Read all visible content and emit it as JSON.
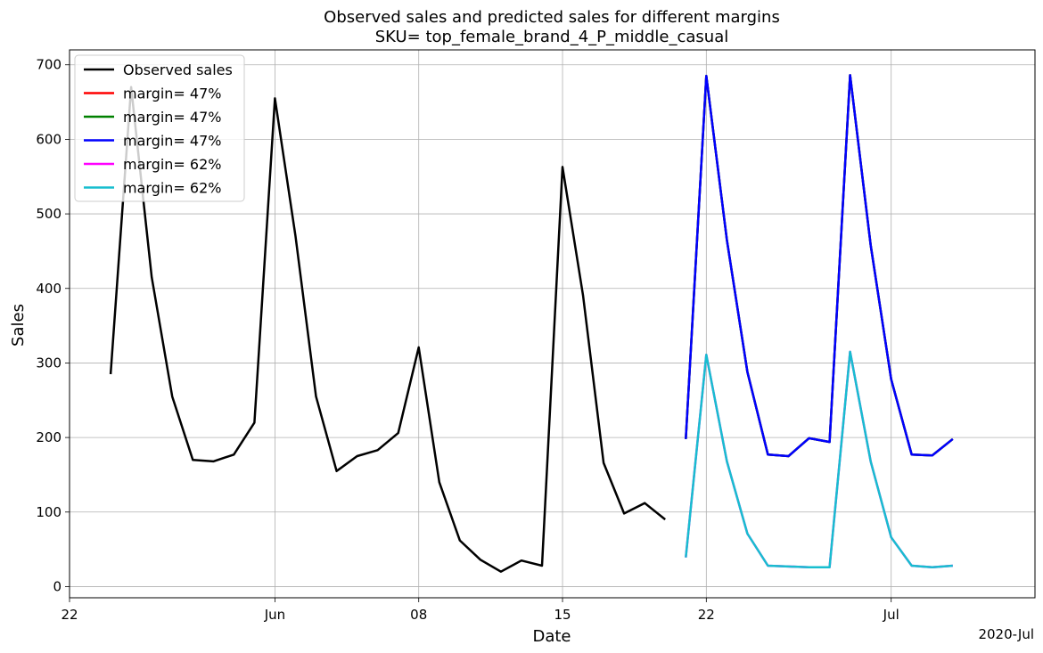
{
  "chart_data": {
    "type": "line",
    "title": "Observed sales and predicted sales for different margins",
    "subtitle": "SKU= top_female_brand_4_P_middle_casual",
    "xlabel": "Date",
    "ylabel": "Sales",
    "x_offset_label": "2020-Jul",
    "grid": true,
    "legend_position": "top-left",
    "ylim": [
      -15,
      720
    ],
    "xlim": [
      "2020-05-22",
      "2020-07-08"
    ],
    "x_ticks": [
      {
        "date": "2020-05-22",
        "label": "22"
      },
      {
        "date": "2020-06-01",
        "label": "Jun"
      },
      {
        "date": "2020-06-08",
        "label": "08"
      },
      {
        "date": "2020-06-15",
        "label": "15"
      },
      {
        "date": "2020-06-22",
        "label": "22"
      },
      {
        "date": "2020-07-01",
        "label": "Jul"
      }
    ],
    "y_ticks": [
      0,
      100,
      200,
      300,
      400,
      500,
      600,
      700
    ],
    "series": [
      {
        "name": "Observed sales",
        "color": "#000000",
        "x": [
          "2020-05-24",
          "2020-05-25",
          "2020-05-26",
          "2020-05-27",
          "2020-05-28",
          "2020-05-29",
          "2020-05-30",
          "2020-05-31",
          "2020-06-01",
          "2020-06-02",
          "2020-06-03",
          "2020-06-04",
          "2020-06-05",
          "2020-06-06",
          "2020-06-07",
          "2020-06-08",
          "2020-06-09",
          "2020-06-10",
          "2020-06-11",
          "2020-06-12",
          "2020-06-13",
          "2020-06-14",
          "2020-06-15",
          "2020-06-16",
          "2020-06-17",
          "2020-06-18",
          "2020-06-19",
          "2020-06-20"
        ],
        "values": [
          285,
          670,
          415,
          255,
          170,
          168,
          177,
          220,
          655,
          470,
          255,
          155,
          175,
          183,
          206,
          321,
          140,
          62,
          36,
          20,
          35,
          28,
          563,
          390,
          166,
          98,
          112,
          90
        ]
      },
      {
        "name": "margin= 47%",
        "color": "#ff0000",
        "x": [
          "2020-06-21",
          "2020-06-22",
          "2020-06-23",
          "2020-06-24",
          "2020-06-25",
          "2020-06-26",
          "2020-06-27",
          "2020-06-28",
          "2020-06-29",
          "2020-06-30",
          "2020-07-01",
          "2020-07-02",
          "2020-07-03",
          "2020-07-04"
        ],
        "values": [
          198,
          685,
          465,
          288,
          177,
          175,
          199,
          194,
          686,
          458,
          278,
          177,
          176,
          198
        ]
      },
      {
        "name": "margin= 47%",
        "color": "#008000",
        "x": [
          "2020-06-21",
          "2020-06-22",
          "2020-06-23",
          "2020-06-24",
          "2020-06-25",
          "2020-06-26",
          "2020-06-27",
          "2020-06-28",
          "2020-06-29",
          "2020-06-30",
          "2020-07-01",
          "2020-07-02",
          "2020-07-03",
          "2020-07-04"
        ],
        "values": [
          198,
          685,
          465,
          288,
          177,
          175,
          199,
          194,
          686,
          458,
          278,
          177,
          176,
          198
        ]
      },
      {
        "name": "margin= 47%",
        "color": "#0000ff",
        "x": [
          "2020-06-21",
          "2020-06-22",
          "2020-06-23",
          "2020-06-24",
          "2020-06-25",
          "2020-06-26",
          "2020-06-27",
          "2020-06-28",
          "2020-06-29",
          "2020-06-30",
          "2020-07-01",
          "2020-07-02",
          "2020-07-03",
          "2020-07-04"
        ],
        "values": [
          198,
          685,
          465,
          288,
          177,
          175,
          199,
          194,
          686,
          458,
          278,
          177,
          176,
          198
        ]
      },
      {
        "name": "margin= 62%",
        "color": "#ff00ff",
        "x": [
          "2020-06-21",
          "2020-06-22",
          "2020-06-23",
          "2020-06-24",
          "2020-06-25",
          "2020-06-26",
          "2020-06-27",
          "2020-06-28",
          "2020-06-29",
          "2020-06-30",
          "2020-07-01",
          "2020-07-02",
          "2020-07-03",
          "2020-07-04"
        ],
        "values": [
          39,
          311,
          168,
          71,
          28,
          27,
          26,
          26,
          315,
          168,
          66,
          28,
          26,
          28
        ]
      },
      {
        "name": "margin= 62%",
        "color": "#17becf",
        "x": [
          "2020-06-21",
          "2020-06-22",
          "2020-06-23",
          "2020-06-24",
          "2020-06-25",
          "2020-06-26",
          "2020-06-27",
          "2020-06-28",
          "2020-06-29",
          "2020-06-30",
          "2020-07-01",
          "2020-07-02",
          "2020-07-03",
          "2020-07-04"
        ],
        "values": [
          39,
          311,
          168,
          71,
          28,
          27,
          26,
          26,
          315,
          168,
          66,
          28,
          26,
          28
        ]
      }
    ]
  }
}
